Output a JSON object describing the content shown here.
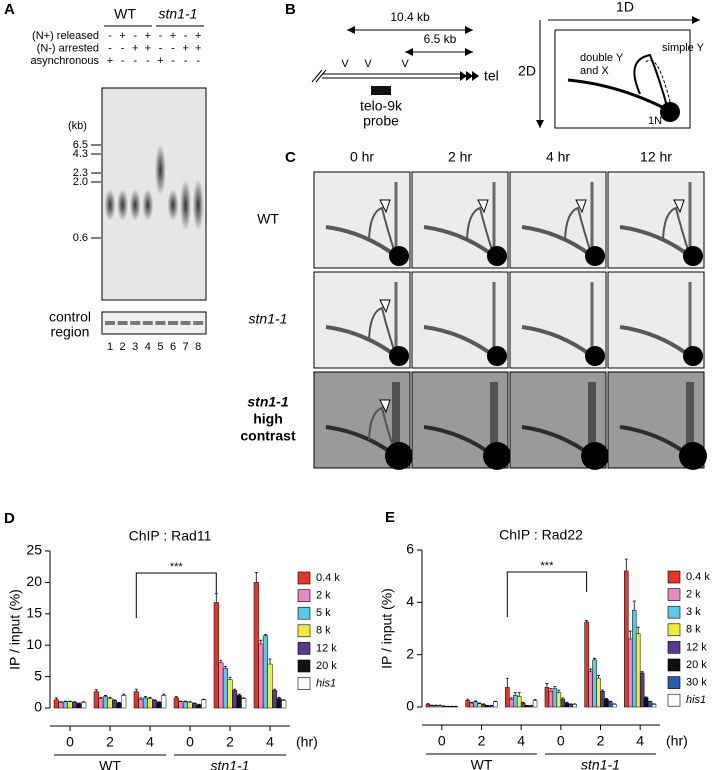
{
  "panels": {
    "A": {
      "letter": "A",
      "strains": [
        "WT",
        "stn1-1"
      ],
      "conditions": [
        {
          "label": "(N+) released",
          "signs": [
            "-",
            "+",
            "-",
            "+",
            "-",
            "+",
            "-",
            "+"
          ]
        },
        {
          "label": "(N-) arrested",
          "signs": [
            "-",
            "-",
            "+",
            "+",
            "-",
            "-",
            "+",
            "+"
          ]
        },
        {
          "label": "asynchronous",
          "signs": [
            "+",
            "-",
            "-",
            "-",
            "+",
            "-",
            "-",
            "-"
          ]
        }
      ],
      "size_unit": "(kb)",
      "sizes": [
        "6.5",
        "4.3",
        "2.3",
        "2.0",
        "0.6"
      ],
      "control_label": [
        "control",
        "region"
      ],
      "lanes": [
        "1",
        "2",
        "3",
        "4",
        "5",
        "6",
        "7",
        "8"
      ]
    },
    "B": {
      "letter": "B",
      "span_long": "10.4 kb",
      "span_short": "6.5 kb",
      "site_mark": "V",
      "end_label": "tel",
      "probe_label": [
        "telo-9k",
        "probe"
      ],
      "axis_1d": "1D",
      "axis_2d": "2D",
      "double_label": [
        "double Y",
        "and X"
      ],
      "simple_label": "simple Y",
      "spot_label": "1N"
    },
    "C": {
      "letter": "C",
      "times": [
        "0 hr",
        "2 hr",
        "4 hr",
        "12 hr"
      ],
      "rows": [
        [
          "WT"
        ],
        [
          "stn1-1"
        ],
        [
          "stn1-1",
          "high",
          "contrast"
        ]
      ]
    }
  },
  "chart_data": [
    {
      "type": "bar",
      "letter": "D",
      "title": "ChIP : Rad11",
      "y_label": "IP / input (%)",
      "x_label": "(hr)",
      "groups": [
        "WT",
        "stn1-1"
      ],
      "annotation": "***",
      "categories": [
        "0",
        "2",
        "4",
        "0",
        "2",
        "4"
      ],
      "ylim": [
        0,
        25
      ],
      "yticks": [
        0,
        5,
        10,
        15,
        20,
        25
      ],
      "series": [
        {
          "name": "0.4 k",
          "color": "#e8332a",
          "values": [
            1.3,
            2.6,
            2.6,
            1.6,
            16.8,
            20.0
          ],
          "errors": [
            0.3,
            0.3,
            0.4,
            0.2,
            1.4,
            1.6
          ]
        },
        {
          "name": "2 k",
          "color": "#e48ac0",
          "values": [
            0.9,
            1.5,
            1.4,
            1.0,
            7.2,
            10.2
          ],
          "errors": [
            0.1,
            0.2,
            0.2,
            0.1,
            0.4,
            0.6
          ]
        },
        {
          "name": "5 k",
          "color": "#5bc8e6",
          "values": [
            1.0,
            1.8,
            1.6,
            1.0,
            6.3,
            11.5
          ],
          "errors": [
            0.1,
            0.2,
            0.2,
            0.1,
            0.3,
            0.2
          ]
        },
        {
          "name": "8 k",
          "color": "#f0ec3c",
          "values": [
            1.0,
            1.5,
            1.5,
            0.9,
            4.5,
            7.0
          ],
          "errors": [
            0.1,
            0.2,
            0.2,
            0.1,
            0.4,
            0.8
          ]
        },
        {
          "name": "12 k",
          "color": "#5a3a8c",
          "values": [
            0.9,
            1.2,
            1.2,
            0.7,
            2.8,
            2.8
          ],
          "errors": [
            0.1,
            0.1,
            0.1,
            0.1,
            0.2,
            0.2
          ]
        },
        {
          "name": "20 k",
          "color": "#111111",
          "values": [
            0.7,
            0.8,
            0.9,
            0.5,
            2.0,
            1.5
          ],
          "errors": [
            0.1,
            0.1,
            0.1,
            0.1,
            0.2,
            0.2
          ]
        },
        {
          "name": "his1",
          "color": "#ffffff",
          "values": [
            0.9,
            2.0,
            2.0,
            1.3,
            1.5,
            1.2
          ],
          "errors": [
            0.1,
            0.2,
            0.2,
            0.1,
            0.1,
            0.1
          ]
        }
      ]
    },
    {
      "type": "bar",
      "letter": "E",
      "title": "ChIP : Rad22",
      "y_label": "IP / input (%)",
      "x_label": "(hr)",
      "groups": [
        "WT",
        "stn1-1"
      ],
      "annotation": "***",
      "categories": [
        "0",
        "2",
        "4",
        "0",
        "2",
        "4"
      ],
      "ylim": [
        0,
        6
      ],
      "yticks": [
        0,
        2,
        4,
        6
      ],
      "series": [
        {
          "name": "0.4 k",
          "color": "#e8332a",
          "values": [
            0.1,
            0.25,
            0.75,
            0.75,
            3.25,
            5.2
          ],
          "errors": [
            0.03,
            0.05,
            0.35,
            0.15,
            0.06,
            0.45
          ]
        },
        {
          "name": "2 k",
          "color": "#e48ac0",
          "values": [
            0.05,
            0.15,
            0.3,
            0.6,
            1.35,
            2.6
          ],
          "errors": [
            0.02,
            0.03,
            0.05,
            0.1,
            0.1,
            0.3
          ]
        },
        {
          "name": "3 k",
          "color": "#5bc8e6",
          "values": [
            0.05,
            0.2,
            0.45,
            0.7,
            1.8,
            3.7
          ],
          "errors": [
            0.02,
            0.03,
            0.1,
            0.08,
            0.06,
            0.35
          ]
        },
        {
          "name": "8 k",
          "color": "#f0ec3c",
          "values": [
            0.05,
            0.12,
            0.4,
            0.55,
            1.1,
            2.8
          ],
          "errors": [
            0.02,
            0.03,
            0.15,
            0.1,
            0.1,
            0.25
          ]
        },
        {
          "name": "12 k",
          "color": "#5a3a8c",
          "values": [
            0.03,
            0.1,
            0.15,
            0.3,
            0.6,
            1.3
          ],
          "errors": [
            0.01,
            0.02,
            0.03,
            0.05,
            0.05,
            0.05
          ]
        },
        {
          "name": "20 k",
          "color": "#111111",
          "values": [
            0.02,
            0.05,
            0.05,
            0.15,
            0.3,
            0.35
          ],
          "errors": [
            0.01,
            0.01,
            0.01,
            0.03,
            0.03,
            0.03
          ]
        },
        {
          "name": "30 k",
          "color": "#2a5db0",
          "values": [
            0.02,
            0.05,
            0.05,
            0.1,
            0.2,
            0.2
          ],
          "errors": [
            0.01,
            0.01,
            0.01,
            0.02,
            0.02,
            0.02
          ]
        },
        {
          "name": "his1",
          "color": "#ffffff",
          "values": [
            0.02,
            0.2,
            0.25,
            0.1,
            0.1,
            0.1
          ],
          "errors": [
            0.01,
            0.02,
            0.03,
            0.02,
            0.02,
            0.02
          ]
        }
      ]
    }
  ]
}
